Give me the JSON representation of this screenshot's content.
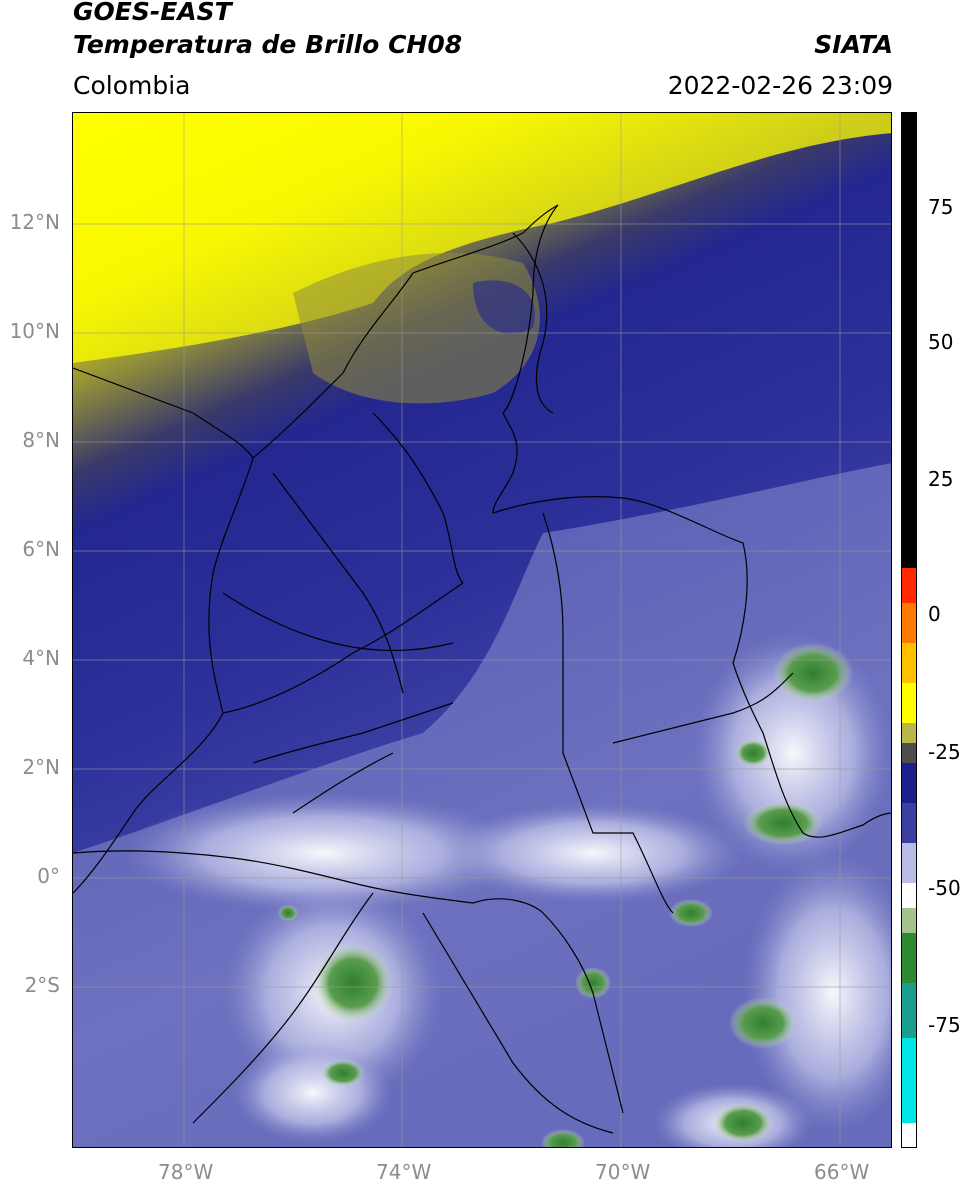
{
  "header": {
    "title_line1": "GOES-EAST",
    "title_line2": "Temperatura de Brillo CH08",
    "region": "Colombia",
    "agency": "SIATA",
    "datetime": "2022-02-26 23:09"
  },
  "axes": {
    "lat_labels": [
      "12°N",
      "10°N",
      "8°N",
      "6°N",
      "4°N",
      "2°N",
      "0°",
      "2°S"
    ],
    "lon_labels": [
      "78°W",
      "74°W",
      "70°W",
      "66°W"
    ]
  },
  "colorbar": {
    "labels": [
      "75",
      "50",
      "25",
      "0",
      "-25",
      "-50",
      "-75"
    ],
    "stops": [
      "#ffffff",
      "#00e5e5",
      "#1a9e8f",
      "#2f8a2f",
      "#a4c38e",
      "#ffffff",
      "#b9bde3",
      "#3a3fa0",
      "#1b1f8c",
      "#4d4d4d",
      "#8c8a2a",
      "#ffff00",
      "#ff9a00",
      "#ff2a00",
      "#000000"
    ]
  },
  "map_colors": {
    "yellow": "#ffff00",
    "olive": "#8f8d3a",
    "navy": "#23278f",
    "blue": "#3d42a3",
    "lavender": "#9fa3d6",
    "white": "#ffffff",
    "green": "#3a8f3a"
  }
}
